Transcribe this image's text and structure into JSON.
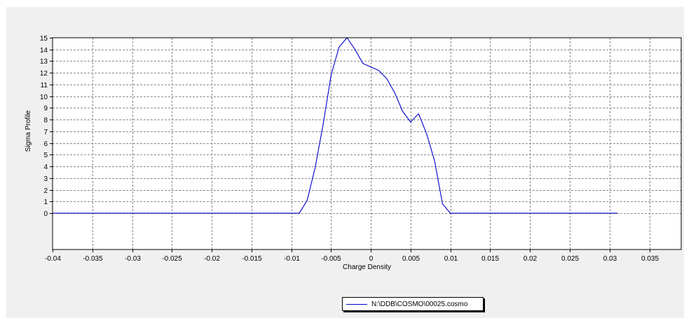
{
  "chart_data": {
    "type": "line",
    "title": "",
    "xlabel": "Charge Density",
    "ylabel": "Sigma Profile",
    "xlim": [
      -0.04,
      0.039
    ],
    "ylim": [
      -3.1,
      15
    ],
    "x_ticks": [
      "-0.04",
      "-0.035",
      "-0.03",
      "-0.025",
      "-0.02",
      "-0.015",
      "-0.01",
      "-0.005",
      "0",
      "0.005",
      "0.01",
      "0.015",
      "0.02",
      "0.025",
      "0.03",
      "0.035"
    ],
    "y_ticks": [
      "0",
      "1",
      "2",
      "3",
      "4",
      "5",
      "6",
      "7",
      "8",
      "9",
      "10",
      "11",
      "12",
      "13",
      "14",
      "15"
    ],
    "grid": true,
    "legend_position": "bottom",
    "series": [
      {
        "name": "N:\\DDB\\COSMO\\00025.cosmo",
        "color": "#0000cc",
        "x": [
          -0.04,
          -0.009,
          -0.008,
          -0.007,
          -0.006,
          -0.005,
          -0.004,
          -0.003,
          -0.002,
          -0.001,
          0,
          0.001,
          0.002,
          0.003,
          0.004,
          0.005,
          0.006,
          0.007,
          0.008,
          0.009,
          0.01,
          0.031
        ],
        "y": [
          0,
          0,
          1.1,
          3.9,
          7.6,
          11.8,
          14.2,
          15.0,
          14.0,
          12.8,
          12.5,
          12.2,
          11.5,
          10.3,
          8.7,
          7.8,
          8.5,
          6.8,
          4.5,
          0.8,
          0,
          0
        ]
      }
    ]
  }
}
